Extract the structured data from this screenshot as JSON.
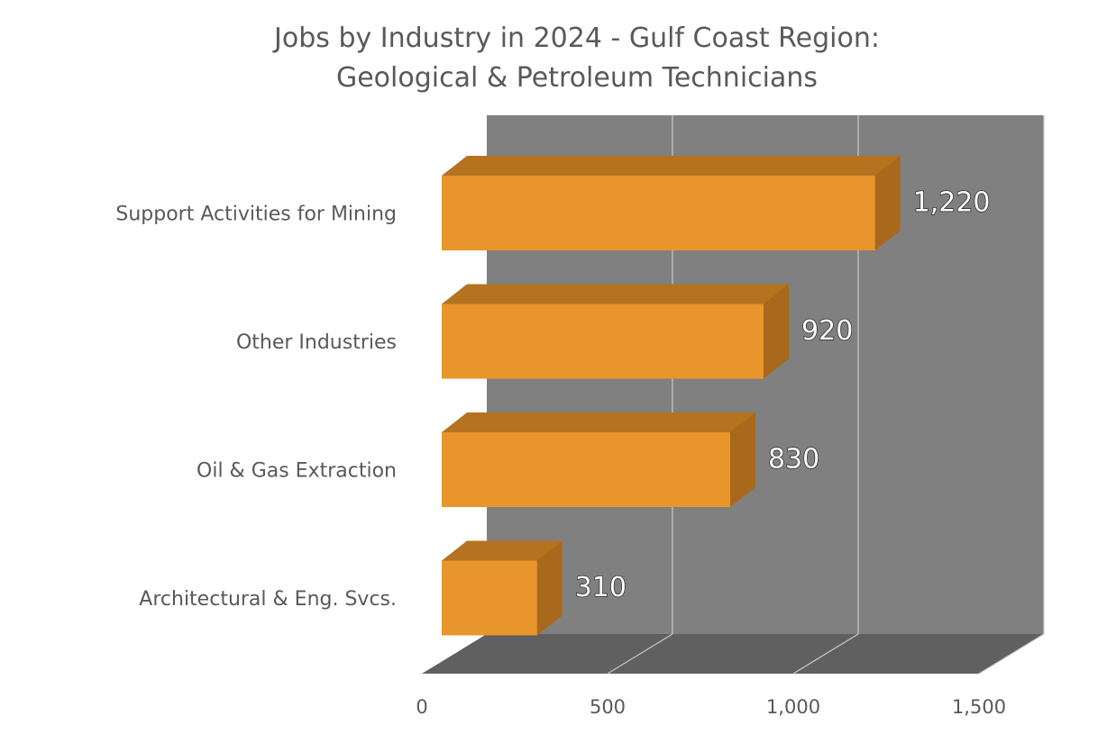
{
  "chart_data": {
    "type": "bar",
    "orientation": "horizontal",
    "style": "3d",
    "title": "Jobs by Industry in 2024 - Gulf Coast Region: Geological & Petroleum Technicians",
    "title_lines": [
      "Jobs by Industry in 2024 - Gulf Coast Region:",
      "Geological & Petroleum Technicians"
    ],
    "categories": [
      "Support Activities for Mining",
      "Other Industries",
      "Oil & Gas Extraction",
      "Architectural & Eng. Svcs."
    ],
    "values": [
      1220,
      920,
      830,
      310
    ],
    "value_labels": [
      "1,220",
      "920",
      "830",
      "310"
    ],
    "xlim": [
      0,
      1500
    ],
    "x_ticks": [
      0,
      500,
      1000,
      1500
    ],
    "x_tick_labels": [
      "0",
      "500",
      "1,000",
      "1,500"
    ],
    "xlabel": "",
    "ylabel": "",
    "grid": true,
    "legend": "none",
    "colors": {
      "bar_front": "#E8952B",
      "bar_top": "#B5721F",
      "bar_side": "#A8691C",
      "back_wall": "#808080",
      "floor": "#606060",
      "gridline": "#C8C8C8",
      "text": "#595959"
    }
  }
}
